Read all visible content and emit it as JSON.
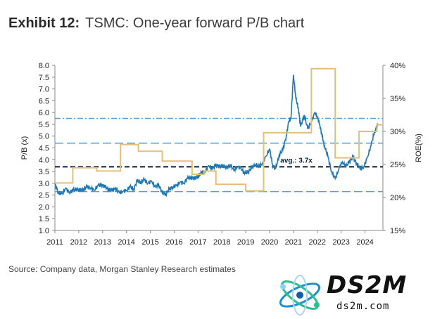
{
  "exhibit": {
    "label": "Exhibit 12:",
    "title": "TSMC: One-year forward P/B chart"
  },
  "source": "Source: Company data, Morgan Stanley Research estimates",
  "logo": {
    "name": "DS2M",
    "url_text": "ds2m.com"
  },
  "chart_data": {
    "type": "line",
    "title": "TSMC: One-year forward P/B chart",
    "xlabel": "",
    "ylabel": "P/B (x)",
    "y2label": "ROE(%)",
    "xlim": [
      2011.0,
      2024.75
    ],
    "ylim": [
      1.0,
      8.0
    ],
    "y2lim": [
      15,
      40
    ],
    "x_ticks": [
      2011,
      2012,
      2013,
      2014,
      2015,
      2016,
      2017,
      2018,
      2019,
      2020,
      2021,
      2022,
      2023,
      2024
    ],
    "y_ticks": [
      "1.0",
      "1.5",
      "2.0",
      "2.5",
      "3.0",
      "3.5",
      "4.0",
      "4.5",
      "5.0",
      "5.5",
      "6.0",
      "6.5",
      "7.0",
      "7.5",
      "8.0"
    ],
    "y2_ticks": [
      "15%",
      "20%",
      "25%",
      "30%",
      "35%",
      "40%"
    ],
    "reference_lines": [
      {
        "name": "avg",
        "value": 3.7,
        "style": "dashed",
        "color": "#0b1f3a",
        "label": "avg.: 3.7x"
      },
      {
        "name": "+2sd",
        "value": 5.75,
        "style": "dash-dot",
        "color": "#4da3dc"
      },
      {
        "name": "+1sd",
        "value": 4.7,
        "style": "dashed",
        "color": "#4da3dc"
      },
      {
        "name": "-1sd",
        "value": 2.65,
        "style": "dashed",
        "color": "#4da3dc"
      }
    ],
    "series": [
      {
        "name": "P/B (x)",
        "axis": "left",
        "color": "#1f77b4",
        "x": [
          2011.0,
          2011.15,
          2011.3,
          2011.45,
          2011.6,
          2011.75,
          2011.9,
          2012.05,
          2012.2,
          2012.35,
          2012.5,
          2012.65,
          2012.8,
          2012.95,
          2013.1,
          2013.25,
          2013.4,
          2013.55,
          2013.7,
          2013.85,
          2014.0,
          2014.15,
          2014.3,
          2014.45,
          2014.6,
          2014.75,
          2014.9,
          2015.05,
          2015.2,
          2015.35,
          2015.5,
          2015.65,
          2015.8,
          2015.95,
          2016.1,
          2016.25,
          2016.4,
          2016.55,
          2016.7,
          2016.85,
          2017.0,
          2017.15,
          2017.3,
          2017.45,
          2017.6,
          2017.75,
          2017.9,
          2018.05,
          2018.2,
          2018.35,
          2018.5,
          2018.65,
          2018.8,
          2018.95,
          2019.1,
          2019.25,
          2019.4,
          2019.55,
          2019.7,
          2019.85,
          2020.0,
          2020.12,
          2020.25,
          2020.4,
          2020.55,
          2020.7,
          2020.8,
          2020.9,
          2021.0,
          2021.1,
          2021.2,
          2021.3,
          2021.45,
          2021.6,
          2021.75,
          2021.9,
          2022.0,
          2022.1,
          2022.2,
          2022.3,
          2022.45,
          2022.6,
          2022.75,
          2022.9,
          2023.05,
          2023.2,
          2023.35,
          2023.5,
          2023.65,
          2023.8,
          2023.95,
          2024.1,
          2024.25,
          2024.4,
          2024.55
        ],
        "values": [
          2.95,
          2.6,
          2.55,
          2.8,
          2.6,
          2.7,
          2.75,
          2.7,
          2.75,
          2.85,
          2.8,
          2.7,
          2.9,
          2.95,
          2.85,
          2.75,
          2.7,
          2.8,
          2.6,
          2.65,
          2.7,
          2.85,
          2.75,
          3.1,
          3.05,
          3.15,
          3.0,
          3.1,
          2.85,
          2.95,
          2.6,
          2.55,
          2.75,
          2.85,
          2.9,
          3.05,
          3.0,
          3.2,
          3.25,
          3.2,
          3.3,
          3.45,
          3.5,
          3.75,
          3.6,
          3.8,
          3.7,
          3.75,
          3.65,
          3.8,
          3.55,
          3.7,
          3.65,
          3.4,
          3.5,
          3.65,
          3.8,
          3.7,
          3.85,
          4.15,
          4.45,
          3.8,
          3.6,
          4.2,
          4.4,
          5.0,
          5.6,
          5.8,
          7.6,
          6.6,
          6.2,
          5.4,
          5.9,
          5.3,
          5.6,
          6.0,
          5.8,
          5.5,
          5.0,
          4.6,
          4.1,
          3.5,
          3.2,
          3.6,
          3.9,
          3.7,
          3.95,
          4.1,
          3.85,
          3.6,
          3.7,
          4.1,
          4.6,
          5.2,
          5.5
        ]
      },
      {
        "name": "ROE(%)",
        "axis": "right",
        "color": "#e3c07a",
        "step": true,
        "x": [
          2011.0,
          2011.25,
          2011.75,
          2012.75,
          2013.75,
          2014.5,
          2015.5,
          2016.75,
          2017.25,
          2017.75,
          2019.0,
          2019.75,
          2021.75,
          2022.75,
          2023.75,
          2024.5,
          2024.75
        ],
        "values": [
          22.2,
          22.2,
          24.5,
          24,
          28,
          27,
          25.5,
          23.5,
          24,
          22,
          21,
          29.8,
          39.5,
          26,
          30,
          31,
          31
        ]
      }
    ]
  }
}
